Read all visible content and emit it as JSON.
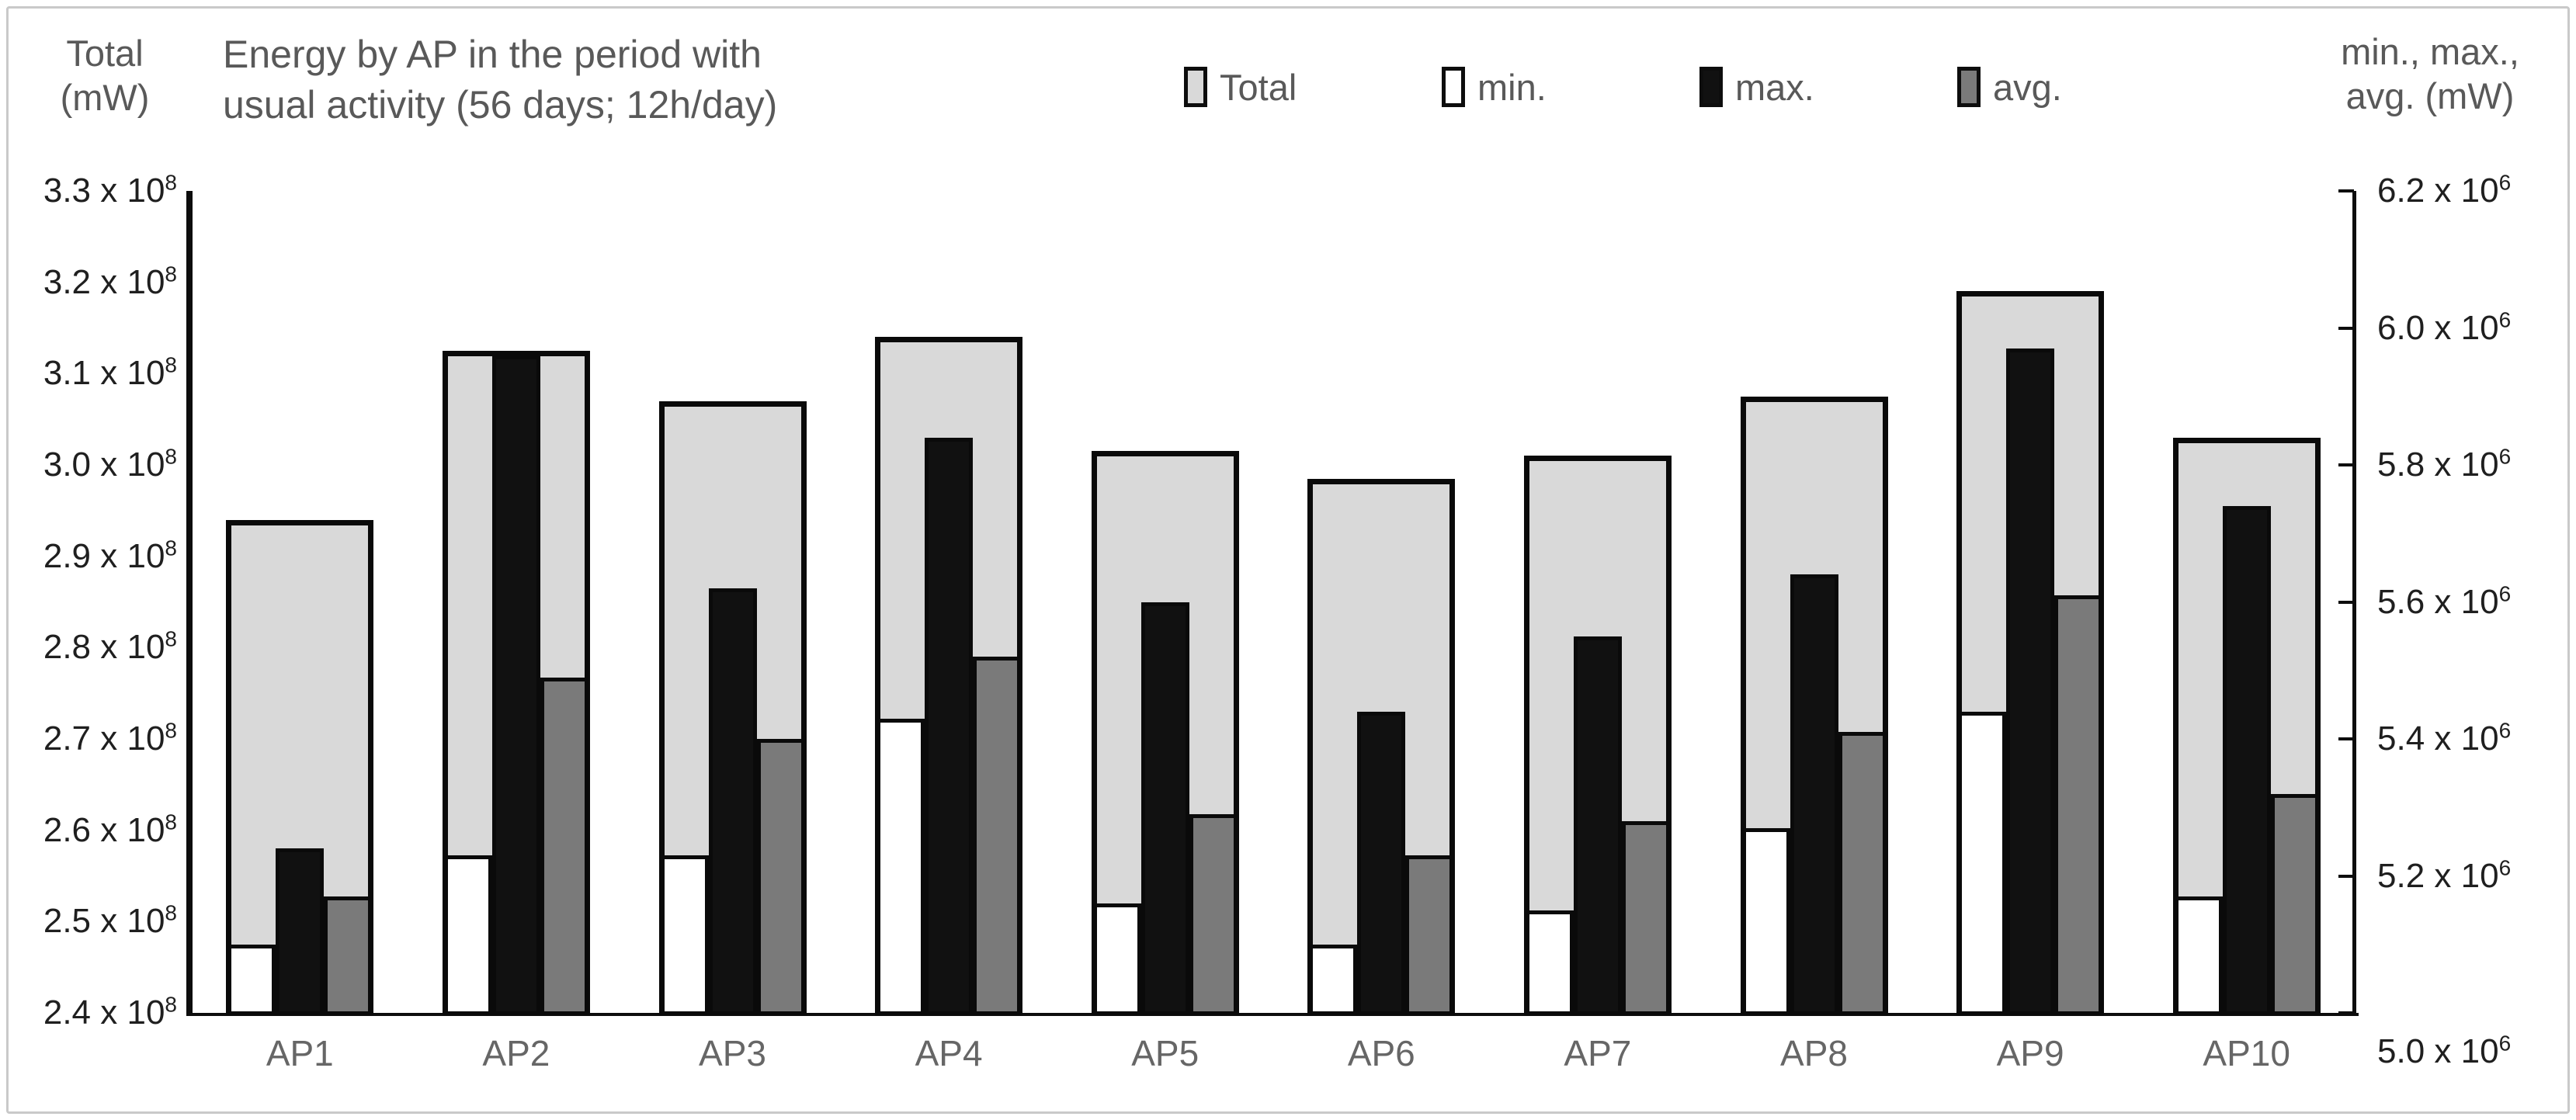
{
  "figure": {
    "title_line1": "Energy by AP in the period with",
    "title_line2": "usual activity (56 days; 12h/day)",
    "left_axis_title_line1": "Total",
    "left_axis_title_line2": "(mW)",
    "right_axis_title_line1": "min., max.,",
    "right_axis_title_line2": "avg. (mW)",
    "legend": [
      {
        "label": "Total",
        "fill": "#d9d9d9"
      },
      {
        "label": "min.",
        "fill": "#ffffff"
      },
      {
        "label": "max.",
        "fill": "#111111"
      },
      {
        "label": "avg.",
        "fill": "#7a7a7a"
      }
    ]
  },
  "chart_data": {
    "type": "bar",
    "title": "Energy by AP in the period with usual activity (56 days; 12h/day)",
    "categories": [
      "AP1",
      "AP2",
      "AP3",
      "AP4",
      "AP5",
      "AP6",
      "AP7",
      "AP8",
      "AP9",
      "AP10"
    ],
    "series": [
      {
        "name": "Total",
        "axis": "left",
        "unit": "mW",
        "fill": "#d9d9d9",
        "values": [
          294000000,
          312500000,
          307000000,
          314000000,
          301500000,
          298500000,
          301000000,
          307500000,
          319000000,
          303000000
        ]
      },
      {
        "name": "min.",
        "axis": "right",
        "unit": "mW",
        "fill": "#ffffff",
        "values": [
          5100000,
          5230000,
          5230000,
          5430000,
          5160000,
          5100000,
          5150000,
          5270000,
          5440000,
          5170000
        ]
      },
      {
        "name": "max.",
        "axis": "right",
        "unit": "mW",
        "fill": "#111111",
        "values": [
          5240000,
          5960000,
          5620000,
          5840000,
          5600000,
          5440000,
          5550000,
          5640000,
          5970000,
          5740000
        ]
      },
      {
        "name": "avg.",
        "axis": "right",
        "unit": "mW",
        "fill": "#7a7a7a",
        "values": [
          5170000,
          5490000,
          5400000,
          5520000,
          5290000,
          5230000,
          5280000,
          5410000,
          5610000,
          5320000
        ]
      }
    ],
    "left_axis": {
      "label": "Total (mW)",
      "min": 240000000,
      "max": 330000000,
      "step": 10000000,
      "tick_mantissas": [
        "3.3",
        "3.2",
        "3.1",
        "3.0",
        "2.9",
        "2.8",
        "2.7",
        "2.6",
        "2.5",
        "2.4"
      ],
      "tick_suffix": "x 10",
      "tick_exponent": "8"
    },
    "right_axis": {
      "label": "min., max., avg. (mW)",
      "min": 5000000,
      "max": 6200000,
      "step": 200000,
      "tick_mantissas": [
        "6.2",
        "6.0",
        "5.8",
        "5.6",
        "5.4",
        "5.2",
        "5.0"
      ],
      "tick_suffix": "x 10",
      "tick_exponent": "6"
    },
    "grid": false,
    "legend_position": "top"
  }
}
